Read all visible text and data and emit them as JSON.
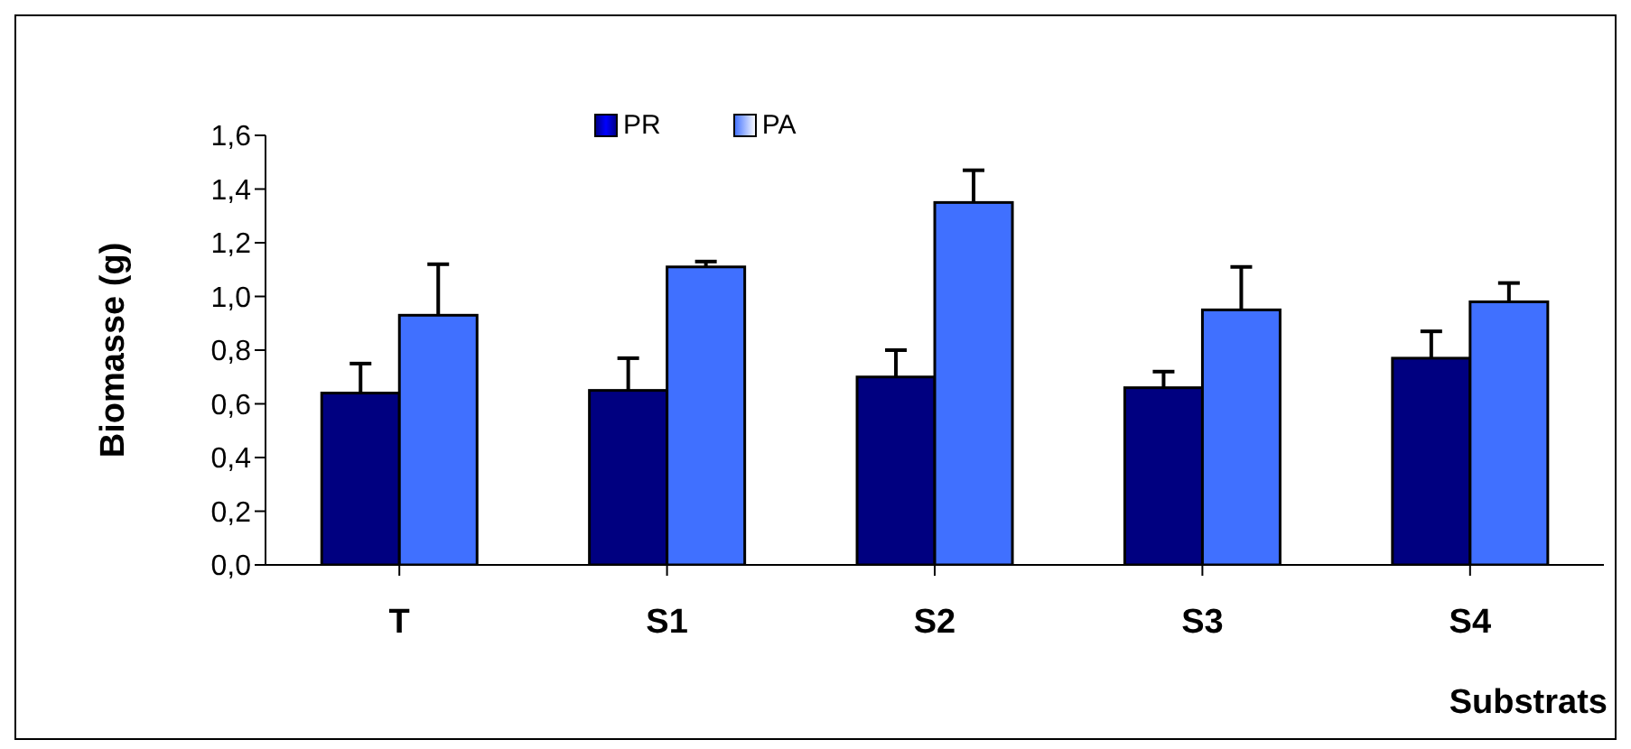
{
  "chart_data": {
    "type": "bar",
    "categories": [
      "T",
      "S1",
      "S2",
      "S3",
      "S4"
    ],
    "xlabel": "Substrats",
    "ylabel": "Biomasse (g)",
    "series": [
      {
        "name": "PR",
        "color": "#000080",
        "values": [
          0.64,
          0.65,
          0.7,
          0.66,
          0.77
        ],
        "errors": [
          [
            0.64,
            0.75
          ],
          [
            0.65,
            0.77
          ],
          [
            0.7,
            0.8
          ],
          [
            0.66,
            0.72
          ],
          [
            0.77,
            0.87
          ]
        ]
      },
      {
        "name": "PA",
        "color": "#4070ff",
        "values": [
          0.93,
          1.11,
          1.35,
          0.95,
          0.98
        ],
        "errors": [
          [
            0.93,
            1.12
          ],
          [
            1.11,
            1.13
          ],
          [
            1.35,
            1.47
          ],
          [
            0.95,
            1.11
          ],
          [
            0.98,
            1.05
          ]
        ]
      }
    ],
    "ylim": [
      0,
      1.6
    ],
    "yticks": [
      {
        "value": 0,
        "label": "0,0"
      },
      {
        "value": 0.2,
        "label": "0,2"
      },
      {
        "value": 0.4,
        "label": "0,4"
      },
      {
        "value": 0.6,
        "label": "0,6"
      },
      {
        "value": 0.8,
        "label": "0,8"
      },
      {
        "value": 1.0,
        "label": "1,0"
      },
      {
        "value": 1.2,
        "label": "1,2"
      },
      {
        "value": 1.4,
        "label": "1,4"
      },
      {
        "value": 1.6,
        "label": "1,6"
      }
    ],
    "grid": false,
    "legend": "top"
  }
}
